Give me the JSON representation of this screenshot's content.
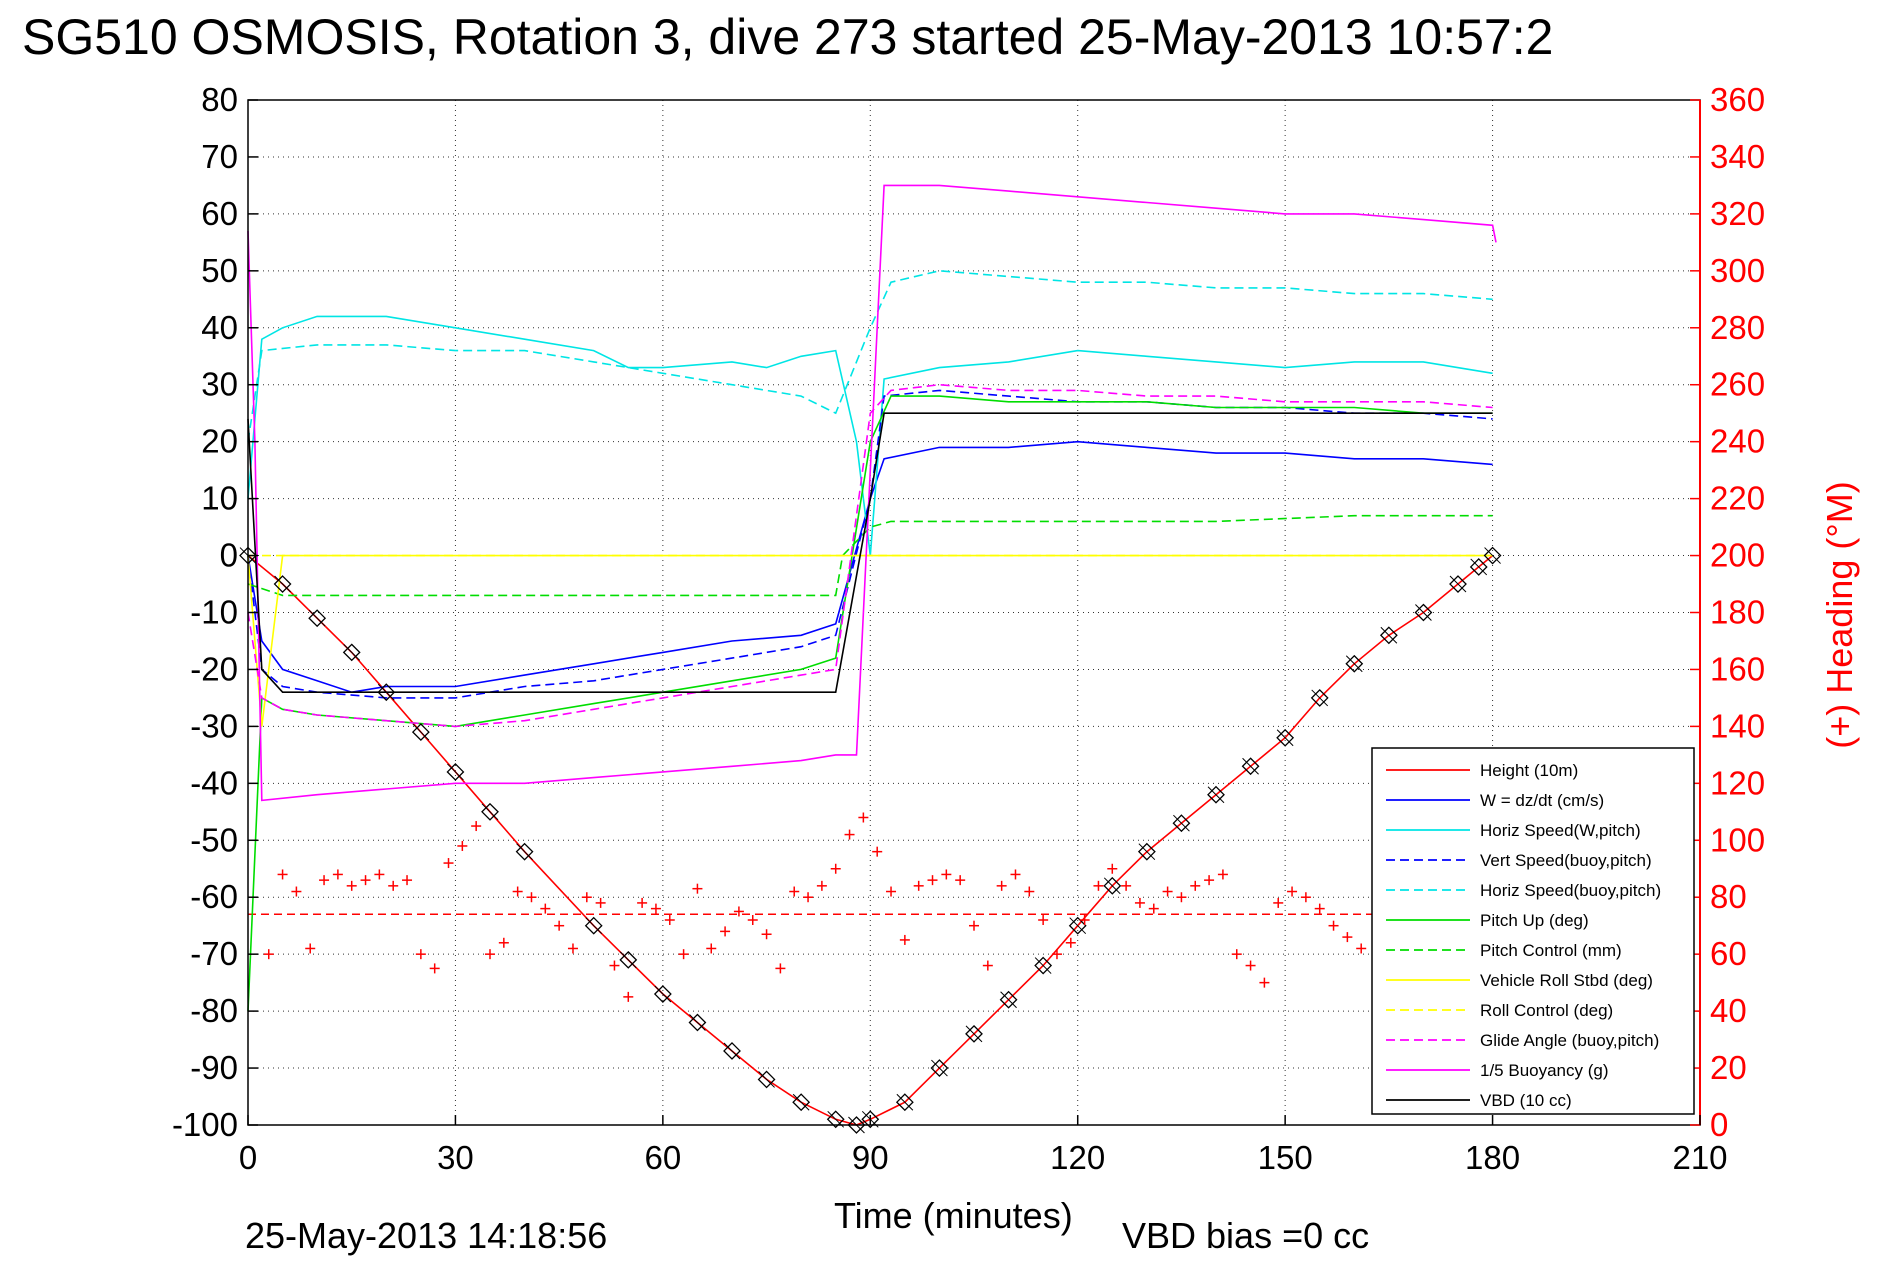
{
  "title": "SG510 OSMOSIS, Rotation 3, dive 273 started 25-May-2013 10:57:2",
  "footer_left": "25-May-2013 14:18:56",
  "footer_right": "VBD bias =0 cc",
  "chart_data": {
    "type": "line",
    "xlabel": "Time (minutes)",
    "ylabel": "",
    "ylabel_right": "(+) Heading (°M)",
    "xlim": [
      0,
      210
    ],
    "ylim": [
      -100,
      80
    ],
    "ylim_right": [
      0,
      360
    ],
    "x_ticks": [
      "0",
      "30",
      "60",
      "90",
      "120",
      "150",
      "180",
      "210"
    ],
    "y_ticks": [
      "80",
      "70",
      "60",
      "50",
      "40",
      "30",
      "20",
      "10",
      "0",
      "-10",
      "-20",
      "-30",
      "-40",
      "-50",
      "-60",
      "-70",
      "-80",
      "-90",
      "-100"
    ],
    "y_ticks_right": [
      "360",
      "340",
      "320",
      "300",
      "280",
      "260",
      "240",
      "220",
      "200",
      "180",
      "160",
      "140",
      "120",
      "100",
      "80",
      "60",
      "40",
      "20",
      "0"
    ],
    "grid": true,
    "legend_position": "bottom-right",
    "colors": {
      "axis_right": "#ff0000"
    },
    "series": [
      {
        "name": "Height (10m)",
        "color": "#ff0000",
        "style": "solid",
        "marker": "diamond",
        "x": [
          0,
          5,
          10,
          15,
          20,
          25,
          30,
          35,
          40,
          50,
          55,
          60,
          65,
          70,
          75,
          80,
          85,
          88,
          90,
          95,
          100,
          105,
          110,
          115,
          120,
          125,
          130,
          135,
          140,
          145,
          150,
          155,
          160,
          165,
          170,
          175,
          178,
          180
        ],
        "y": [
          0,
          -5,
          -11,
          -17,
          -24,
          -31,
          -38,
          -45,
          -52,
          -65,
          -71,
          -77,
          -82,
          -87,
          -92,
          -96,
          -99,
          -100,
          -99,
          -96,
          -90,
          -84,
          -78,
          -72,
          -65,
          -58,
          -52,
          -47,
          -42,
          -37,
          -32,
          -25,
          -19,
          -14,
          -10,
          -5,
          -2,
          0
        ]
      },
      {
        "name": "W = dz/dt (cm/s)",
        "color": "#0000ff",
        "style": "solid",
        "x": [
          0,
          2,
          5,
          10,
          15,
          20,
          30,
          40,
          50,
          60,
          70,
          80,
          85,
          90,
          92,
          100,
          110,
          120,
          130,
          140,
          150,
          160,
          170,
          180
        ],
        "y": [
          0,
          -15,
          -20,
          -22,
          -24,
          -23,
          -23,
          -21,
          -19,
          -17,
          -15,
          -14,
          -12,
          10,
          17,
          19,
          19,
          20,
          19,
          18,
          18,
          17,
          17,
          16
        ]
      },
      {
        "name": "Horiz Speed(W,pitch)",
        "color": "#00e5e5",
        "style": "solid",
        "x": [
          0,
          2,
          5,
          10,
          20,
          30,
          40,
          50,
          55,
          60,
          70,
          75,
          80,
          85,
          88,
          90,
          92,
          100,
          110,
          120,
          130,
          140,
          150,
          160,
          170,
          180
        ],
        "y": [
          10,
          38,
          40,
          42,
          42,
          40,
          38,
          36,
          33,
          33,
          34,
          33,
          35,
          36,
          20,
          0,
          31,
          33,
          34,
          36,
          35,
          34,
          33,
          34,
          34,
          32
        ]
      },
      {
        "name": "Vert Speed(buoy,pitch)",
        "color": "#0000ff",
        "style": "dashed",
        "x": [
          0,
          2,
          5,
          10,
          20,
          30,
          40,
          50,
          60,
          70,
          80,
          85,
          90,
          92,
          100,
          110,
          120,
          130,
          140,
          150,
          160,
          170,
          180
        ],
        "y": [
          0,
          -20,
          -23,
          -24,
          -25,
          -25,
          -23,
          -22,
          -20,
          -18,
          -16,
          -14,
          10,
          28,
          29,
          28,
          27,
          27,
          26,
          26,
          25,
          25,
          24
        ]
      },
      {
        "name": "Horiz Speed(buoy,pitch)",
        "color": "#00e5e5",
        "style": "dashed",
        "x": [
          0,
          2,
          10,
          20,
          30,
          40,
          50,
          60,
          70,
          80,
          85,
          90,
          93,
          100,
          110,
          120,
          130,
          140,
          150,
          160,
          170,
          180
        ],
        "y": [
          20,
          36,
          37,
          37,
          36,
          36,
          34,
          32,
          30,
          28,
          25,
          40,
          48,
          50,
          49,
          48,
          48,
          47,
          47,
          46,
          46,
          45
        ]
      },
      {
        "name": "Pitch Up (deg)",
        "color": "#00dd00",
        "style": "solid",
        "x": [
          0,
          2,
          5,
          10,
          20,
          30,
          40,
          50,
          60,
          70,
          80,
          85,
          90,
          93,
          100,
          110,
          120,
          130,
          140,
          150,
          160,
          170,
          180
        ],
        "y": [
          -80,
          -25,
          -27,
          -28,
          -29,
          -30,
          -28,
          -26,
          -24,
          -22,
          -20,
          -18,
          20,
          28,
          28,
          27,
          27,
          27,
          26,
          26,
          26,
          25,
          25
        ]
      },
      {
        "name": "Pitch Control (mm)",
        "color": "#00dd00",
        "style": "dashed",
        "x": [
          0,
          5,
          10,
          20,
          30,
          40,
          50,
          60,
          70,
          80,
          85,
          86,
          90,
          93,
          100,
          120,
          140,
          160,
          180
        ],
        "y": [
          -5,
          -7,
          -7,
          -7,
          -7,
          -7,
          -7,
          -7,
          -7,
          -7,
          -7,
          0,
          5,
          6,
          6,
          6,
          6,
          7,
          7
        ]
      },
      {
        "name": "Vehicle Roll Stbd (deg)",
        "color": "#ffff00",
        "style": "solid",
        "x": [
          0,
          2,
          5,
          10,
          20,
          30,
          40,
          50,
          60,
          70,
          80,
          85,
          90,
          100,
          110,
          120,
          130,
          140,
          150,
          160,
          170,
          180
        ],
        "y": [
          0,
          -30,
          0,
          0,
          0,
          0,
          0,
          0,
          0,
          0,
          0,
          0,
          0,
          0,
          0,
          0,
          0,
          0,
          0,
          0,
          0,
          0
        ]
      },
      {
        "name": "Roll Control (deg)",
        "color": "#ffff00",
        "style": "dashed",
        "x": [
          0,
          5,
          10,
          20,
          30,
          40,
          50,
          60,
          70,
          80,
          85,
          90,
          100,
          110,
          120,
          130,
          140,
          150,
          160,
          170,
          180
        ],
        "y": [
          0,
          0,
          0,
          0,
          0,
          0,
          0,
          0,
          0,
          0,
          0,
          0,
          0,
          0,
          0,
          0,
          0,
          0,
          0,
          0,
          0
        ]
      },
      {
        "name": "Glide Angle (buoy,pitch)",
        "color": "#ff00ff",
        "style": "dashed",
        "x": [
          0,
          2,
          5,
          10,
          20,
          30,
          40,
          50,
          60,
          70,
          80,
          85,
          90,
          93,
          100,
          110,
          120,
          130,
          140,
          150,
          160,
          170,
          180
        ],
        "y": [
          -10,
          -25,
          -27,
          -28,
          -29,
          -30,
          -29,
          -27,
          -25,
          -23,
          -21,
          -20,
          25,
          29,
          30,
          29,
          29,
          28,
          28,
          27,
          27,
          27,
          26
        ]
      },
      {
        "name": "1/5 Buoyancy (g)",
        "color": "#ff00ff",
        "style": "solid",
        "x": [
          0,
          1,
          2,
          10,
          20,
          30,
          40,
          50,
          60,
          70,
          80,
          85,
          88,
          92,
          95,
          100,
          110,
          120,
          130,
          140,
          150,
          160,
          170,
          180,
          180.5
        ],
        "y": [
          57,
          20,
          -43,
          -42,
          -41,
          -40,
          -40,
          -39,
          -38,
          -37,
          -36,
          -35,
          -35,
          65,
          65,
          65,
          64,
          63,
          62,
          61,
          60,
          60,
          59,
          58,
          55
        ]
      },
      {
        "name": "VBD (10 cc)",
        "color": "#000000",
        "style": "solid",
        "x": [
          0,
          2,
          5,
          85,
          90,
          92,
          180
        ],
        "y": [
          24,
          -20,
          -24,
          -24,
          10,
          25,
          25
        ]
      }
    ],
    "heading_series": {
      "name": "Heading",
      "color": "#ff0000",
      "marker": "+",
      "x": [
        3,
        5,
        7,
        9,
        11,
        13,
        15,
        17,
        19,
        21,
        23,
        25,
        27,
        29,
        31,
        33,
        35,
        37,
        39,
        41,
        43,
        45,
        47,
        49,
        51,
        53,
        55,
        57,
        59,
        61,
        63,
        65,
        67,
        69,
        71,
        73,
        75,
        77,
        79,
        81,
        83,
        85,
        87,
        89,
        91,
        93,
        95,
        97,
        99,
        101,
        103,
        105,
        107,
        109,
        111,
        113,
        115,
        117,
        119,
        121,
        123,
        125,
        127,
        129,
        131,
        133,
        135,
        137,
        139,
        141,
        143,
        145,
        147,
        149,
        151,
        153,
        155,
        157,
        159,
        161
      ],
      "y": [
        60,
        88,
        82,
        62,
        86,
        88,
        84,
        86,
        88,
        84,
        86,
        60,
        55,
        92,
        98,
        105,
        60,
        64,
        82,
        80,
        76,
        70,
        62,
        80,
        78,
        56,
        45,
        78,
        76,
        72,
        60,
        83,
        62,
        68,
        75,
        72,
        67,
        55,
        82,
        80,
        84,
        90,
        102,
        108,
        96,
        82,
        65,
        84,
        86,
        88,
        86,
        70,
        56,
        84,
        88,
        82,
        72,
        60,
        64,
        72,
        84,
        90,
        84,
        78,
        76,
        82,
        80,
        84,
        86,
        88,
        60,
        56,
        50,
        78,
        82,
        80,
        76,
        70,
        66,
        62
      ]
    },
    "heading_ref": {
      "value": 74,
      "color": "#ff0000",
      "style": "dashed",
      "x": [
        0,
        180
      ]
    }
  }
}
